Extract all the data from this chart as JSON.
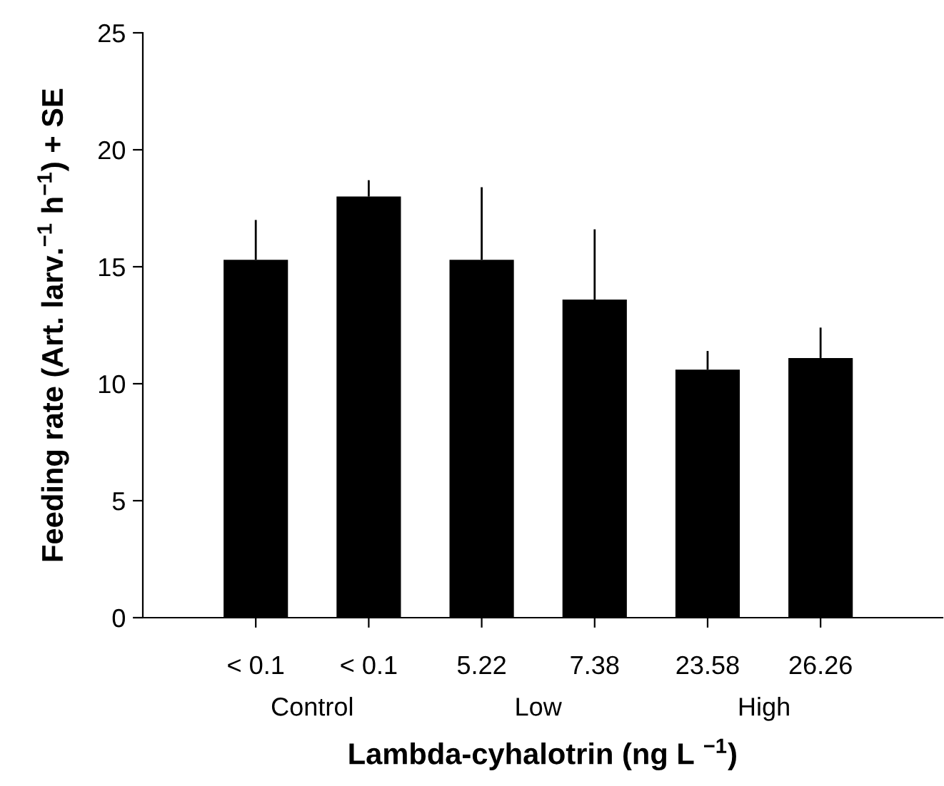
{
  "chart_data": {
    "type": "bar",
    "xlabel": "Lambda-cyhalotrin (ng L $^{−1}$)",
    "ylabel": "Feeding rate (Art. larv.$^{−1}$ h$^{−1}$) + SE",
    "categories": [
      "< 0.1",
      "< 0.1",
      "5.22",
      "7.38",
      "23.58",
      "26.26"
    ],
    "values": [
      15.3,
      18.0,
      15.3,
      13.6,
      10.6,
      11.1
    ],
    "errors": [
      [
        15.3,
        17.0
      ],
      [
        18.0,
        18.7
      ],
      [
        15.3,
        18.4
      ],
      [
        13.6,
        16.6
      ],
      [
        10.6,
        11.4
      ],
      [
        11.1,
        12.4
      ]
    ],
    "color": "#000000",
    "annotations": [
      "Control",
      "Low",
      "High"
    ],
    "ylim": [
      0,
      25
    ],
    "yticks": [
      0,
      5,
      10,
      15,
      20,
      25
    ],
    "grid": false,
    "legend": false
  }
}
